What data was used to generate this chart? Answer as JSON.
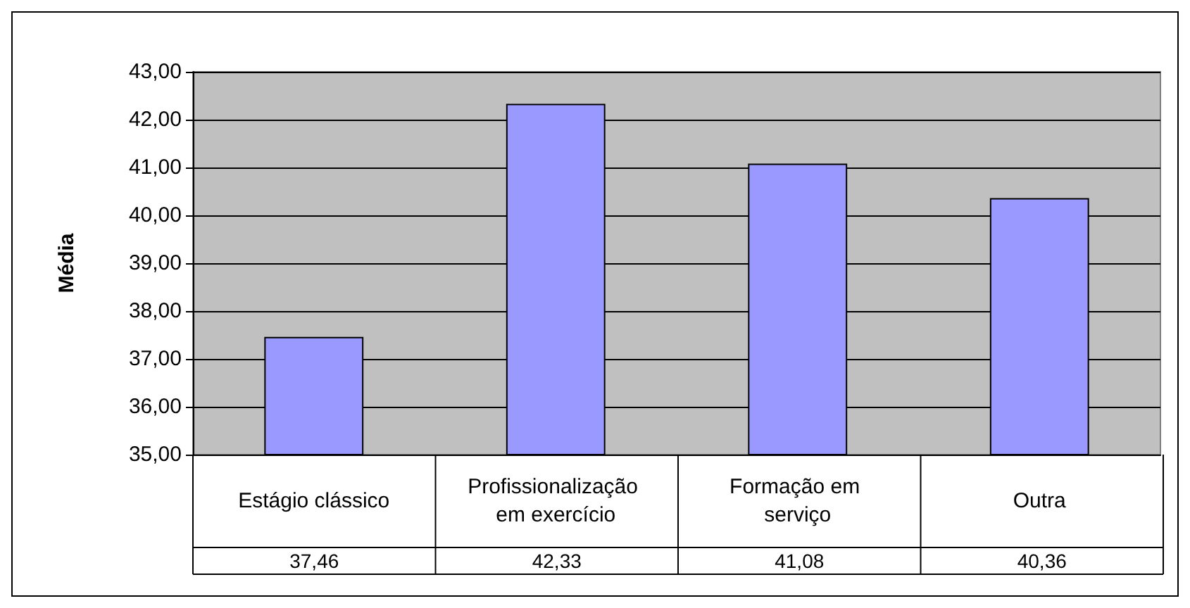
{
  "chart_data": {
    "type": "bar",
    "ylabel": "Média",
    "categories": [
      "Estágio clássico",
      "Profissionalização em exercício",
      "Formação em serviço",
      "Outra"
    ],
    "values": [
      37.46,
      42.33,
      41.08,
      40.36
    ],
    "value_labels": [
      "37,46",
      "42,33",
      "41,08",
      "40,36"
    ],
    "color": "#9999ff",
    "ylim": [
      35,
      43
    ],
    "yticks": [
      {
        "value": 35,
        "label": "35,00"
      },
      {
        "value": 36,
        "label": "36,00"
      },
      {
        "value": 37,
        "label": "37,00"
      },
      {
        "value": 38,
        "label": "38,00"
      },
      {
        "value": 39,
        "label": "39,00"
      },
      {
        "value": 40,
        "label": "40,00"
      },
      {
        "value": 41,
        "label": "41,00"
      },
      {
        "value": 42,
        "label": "42,00"
      },
      {
        "value": 43,
        "label": "43,00"
      }
    ],
    "grid": "y"
  }
}
